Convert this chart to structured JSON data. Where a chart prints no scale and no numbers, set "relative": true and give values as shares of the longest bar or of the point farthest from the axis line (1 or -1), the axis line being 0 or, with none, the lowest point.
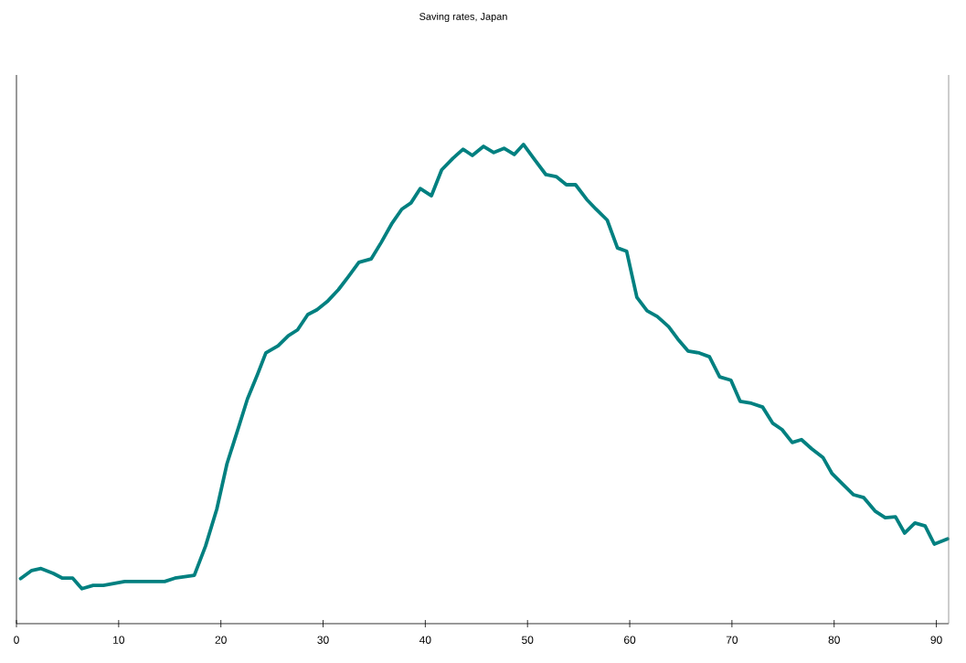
{
  "chart_data": {
    "type": "line",
    "title": "Saving rates, Japan",
    "relative": true,
    "xlim": [
      0,
      91.2
    ],
    "xticks": [
      0,
      10,
      20,
      30,
      40,
      50,
      60,
      70,
      80,
      90
    ],
    "series": [
      {
        "color": "#008080",
        "x": [
          0.4,
          1.5,
          2.4,
          3.6,
          4.5,
          5.5,
          6.4,
          7.5,
          8.5,
          10.6,
          14.5,
          15.5,
          17.4,
          18.5,
          19.6,
          20.6,
          21.6,
          22.6,
          23.6,
          24.4,
          25.6,
          26.6,
          27.5,
          28.5,
          29.4,
          30.4,
          31.5,
          32.5,
          33.5,
          34.7,
          35.7,
          36.7,
          37.7,
          38.6,
          39.5,
          40.6,
          41.6,
          42.7,
          43.7,
          44.6,
          45.7,
          46.7,
          47.7,
          48.7,
          49.6,
          50.7,
          51.8,
          52.8,
          53.8,
          54.7,
          55.8,
          56.7,
          57.8,
          58.8,
          59.7,
          60.7,
          61.7,
          62.7,
          63.8,
          64.7,
          65.7,
          66.8,
          67.8,
          68.8,
          69.9,
          70.8,
          71.9,
          73.0,
          74.0,
          74.9,
          75.9,
          76.8,
          77.8,
          78.9,
          79.8,
          80.9,
          81.9,
          82.9,
          84.0,
          85.0,
          86.0,
          86.9,
          87.9,
          88.9,
          89.8,
          91.1
        ],
        "values": [
          0.094,
          0.111,
          0.115,
          0.105,
          0.095,
          0.095,
          0.073,
          0.08,
          0.08,
          0.088,
          0.088,
          0.095,
          0.101,
          0.162,
          0.239,
          0.334,
          0.401,
          0.469,
          0.521,
          0.565,
          0.58,
          0.601,
          0.613,
          0.645,
          0.655,
          0.672,
          0.697,
          0.725,
          0.754,
          0.761,
          0.796,
          0.834,
          0.865,
          0.878,
          0.908,
          0.893,
          0.947,
          0.971,
          0.99,
          0.977,
          0.996,
          0.983,
          0.992,
          0.979,
          1,
          0.968,
          0.937,
          0.933,
          0.916,
          0.916,
          0.885,
          0.865,
          0.842,
          0.784,
          0.777,
          0.681,
          0.653,
          0.641,
          0.62,
          0.594,
          0.569,
          0.565,
          0.557,
          0.515,
          0.508,
          0.464,
          0.46,
          0.452,
          0.418,
          0.405,
          0.378,
          0.384,
          0.365,
          0.347,
          0.313,
          0.29,
          0.269,
          0.263,
          0.235,
          0.221,
          0.223,
          0.189,
          0.21,
          0.204,
          0.166,
          0.177
        ]
      }
    ]
  }
}
